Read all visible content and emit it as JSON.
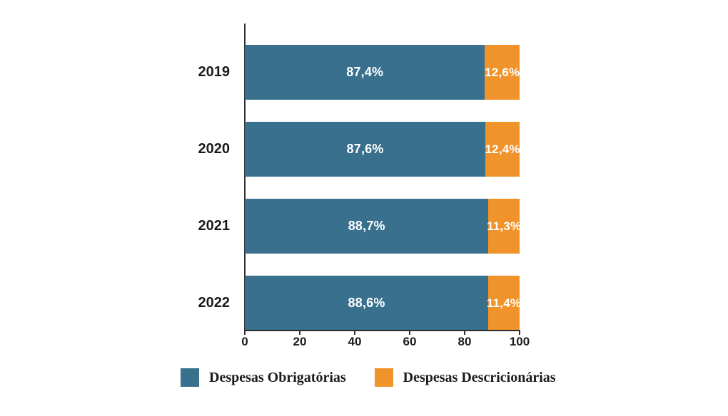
{
  "chart_data": {
    "type": "bar",
    "orientation": "horizontal",
    "stacked": true,
    "title": "",
    "xlabel": "",
    "ylabel": "",
    "grid": false,
    "legend_position": "bottom",
    "xlim": [
      0,
      100
    ],
    "x_ticks": [
      "0",
      "20",
      "40",
      "60",
      "80",
      "100"
    ],
    "categories": [
      "2019",
      "2020",
      "2021",
      "2022"
    ],
    "series": [
      {
        "name": "Despesas Obrigatórias",
        "color": "#38708E",
        "values": [
          87.4,
          87.6,
          88.7,
          88.6
        ],
        "labels": [
          "87,4%",
          "87,6%",
          "88,7%",
          "88,6%"
        ]
      },
      {
        "name": "Despesas Descricionárias",
        "color": "#F0932B",
        "values": [
          12.6,
          12.4,
          11.3,
          11.4
        ],
        "labels": [
          "12,6%",
          "12,4%",
          "11,3%",
          "11,4%"
        ]
      }
    ]
  },
  "legend": {
    "items": [
      {
        "label": "Despesas Obrigatórias",
        "color": "#38708E"
      },
      {
        "label": "Despesas Descricionárias",
        "color": "#F0932B"
      }
    ]
  }
}
